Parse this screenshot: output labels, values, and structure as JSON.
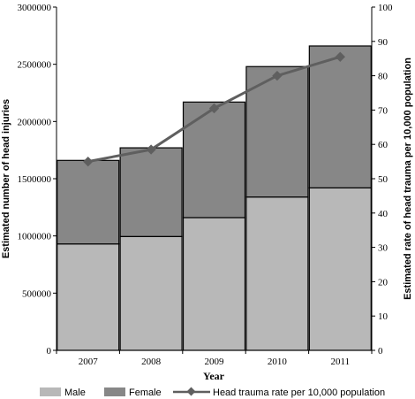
{
  "chart_data": {
    "type": "bar",
    "stacked": true,
    "categories": [
      "2007",
      "2008",
      "2009",
      "2010",
      "2011"
    ],
    "series": [
      {
        "name": "Male",
        "type": "bar",
        "axis": "left",
        "color": "#b8b8b8",
        "values": [
          930000,
          995000,
          1160000,
          1340000,
          1420000
        ]
      },
      {
        "name": "Female",
        "type": "bar",
        "axis": "left",
        "color": "#878787",
        "values": [
          730000,
          775000,
          1010000,
          1140000,
          1240000
        ]
      },
      {
        "name": "Head trauma rate per 10,000 population",
        "type": "line",
        "axis": "right",
        "color": "#5f5f5f",
        "marker": "diamond",
        "values": [
          55,
          58.5,
          70.5,
          80,
          85.5
        ]
      }
    ],
    "xlabel": "Year",
    "ylabel": "Estimated number of head injuries",
    "ylabel_right": "Estimated rate of head trauma per 10,000 population",
    "ylim": [
      0,
      3000000
    ],
    "yticks": [
      "0",
      "500000",
      "1000000",
      "1500000",
      "2000000",
      "2500000",
      "3000000"
    ],
    "ylim_right": [
      0,
      100
    ],
    "yticks_right": [
      "0",
      "10",
      "20",
      "30",
      "40",
      "50",
      "60",
      "70",
      "80",
      "90",
      "100"
    ],
    "legend_position": "bottom",
    "grid": false
  }
}
